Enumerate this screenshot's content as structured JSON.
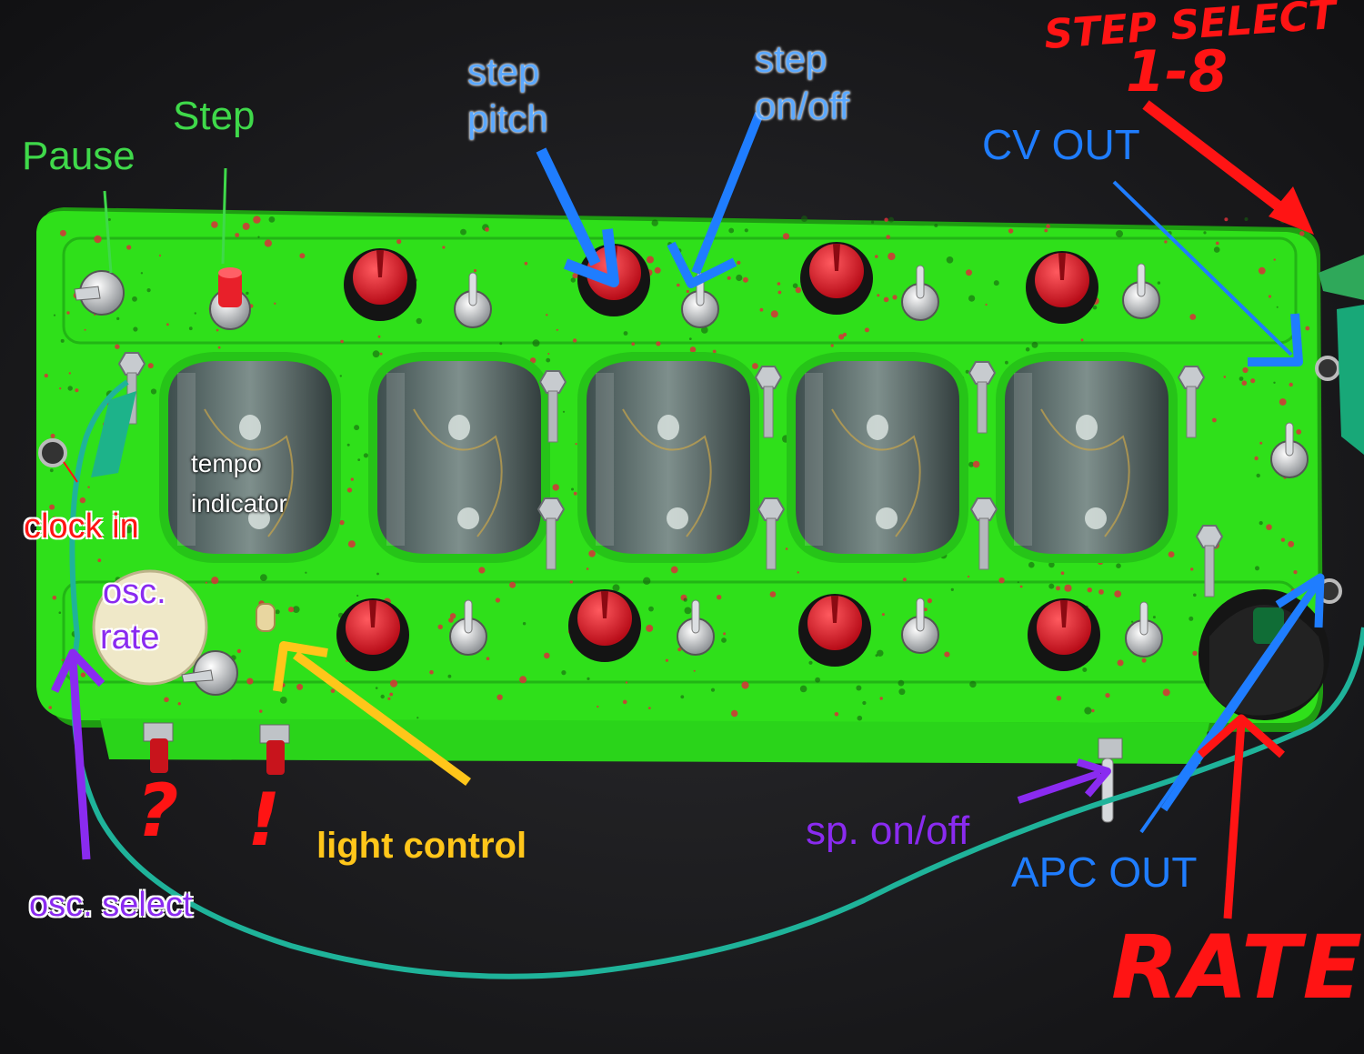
{
  "labels": {
    "pause": "Pause",
    "step": "Step",
    "step_pitch_1": "step",
    "step_pitch_2": "pitch",
    "step_onoff_1": "step",
    "step_onoff_2": "on/off",
    "step_select_1": "STEP SELECT",
    "step_select_2": "1-8",
    "cv_out": "CV OUT",
    "tempo_indicator_1": "tempo",
    "tempo_indicator_2": "indicator",
    "clock_in": "clock in",
    "osc_rate_1": "osc.",
    "osc_rate_2": "rate",
    "question_mark": "?",
    "exclamation_mark": "!",
    "light_control": "light control",
    "osc_select": "osc. select",
    "sp_onoff": "sp. on/off",
    "apc_out": "APC OUT",
    "rate": "RATE"
  },
  "colors": {
    "enclosure": "#2fe01a",
    "annotation_green": "#3fd94a",
    "annotation_blue": "#1f7dff",
    "annotation_red": "#ff1414",
    "annotation_purple": "#8a2bf0",
    "annotation_yellow": "#ffc61a",
    "knob_cap": "#e8202a",
    "cable": "#1fb39a"
  }
}
